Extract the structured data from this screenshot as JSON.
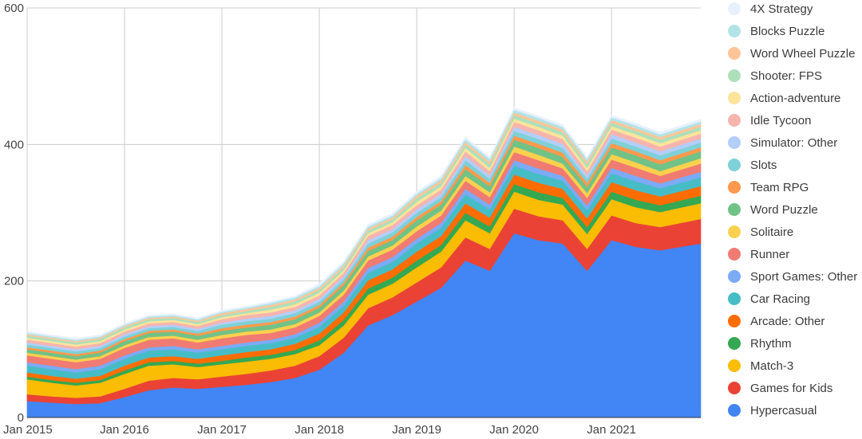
{
  "chart_data": {
    "type": "area",
    "stacked": true,
    "title": "",
    "xlabel": "",
    "ylabel": "",
    "ylim": [
      0,
      600
    ],
    "yticks": [
      "0",
      "200",
      "400",
      "600"
    ],
    "xticks": [
      "Jan 2015",
      "Jan 2016",
      "Jan 2017",
      "Jan 2018",
      "Jan 2019",
      "Jan 2020",
      "Jan 2021"
    ],
    "x_start": "2015-01",
    "x": [
      "2015-01",
      "2015-04",
      "2015-07",
      "2015-10",
      "2016-01",
      "2016-04",
      "2016-07",
      "2016-10",
      "2017-01",
      "2017-04",
      "2017-07",
      "2017-10",
      "2018-01",
      "2018-04",
      "2018-07",
      "2018-10",
      "2019-01",
      "2019-04",
      "2019-07",
      "2019-10",
      "2020-01",
      "2020-04",
      "2020-07",
      "2020-10",
      "2021-01",
      "2021-04",
      "2021-07",
      "2021-10"
    ],
    "grid": true,
    "legend_position": "right",
    "series": [
      {
        "name": "Hypercasual",
        "color": "#4285f4",
        "values": [
          24,
          22,
          20,
          21,
          30,
          40,
          44,
          42,
          45,
          48,
          52,
          58,
          70,
          95,
          135,
          150,
          170,
          190,
          230,
          215,
          270,
          260,
          255,
          215,
          260,
          250,
          245,
          255
        ]
      },
      {
        "name": "Games for Kids",
        "color": "#ea4335",
        "values": [
          10,
          9,
          9,
          10,
          12,
          14,
          14,
          14,
          15,
          16,
          17,
          18,
          20,
          22,
          25,
          26,
          28,
          30,
          34,
          32,
          36,
          35,
          34,
          32,
          36,
          35,
          34,
          36
        ]
      },
      {
        "name": "Match-3",
        "color": "#fbbc04",
        "values": [
          22,
          20,
          18,
          20,
          22,
          22,
          20,
          18,
          18,
          18,
          17,
          17,
          16,
          18,
          20,
          20,
          22,
          23,
          25,
          23,
          25,
          24,
          23,
          22,
          24,
          23,
          22,
          23
        ]
      },
      {
        "name": "Rhythm",
        "color": "#34a853",
        "values": [
          4,
          4,
          4,
          4,
          5,
          5,
          5,
          5,
          5,
          6,
          6,
          6,
          7,
          8,
          9,
          9,
          10,
          10,
          11,
          10,
          11,
          11,
          10,
          10,
          11,
          11,
          10,
          11
        ]
      },
      {
        "name": "Arcade: Other",
        "color": "#ff6d01",
        "values": [
          6,
          6,
          6,
          6,
          7,
          7,
          7,
          7,
          8,
          8,
          8,
          9,
          10,
          11,
          12,
          12,
          13,
          13,
          14,
          13,
          14,
          14,
          13,
          13,
          14,
          14,
          13,
          14
        ]
      },
      {
        "name": "Car Racing",
        "color": "#46bdc6",
        "values": [
          10,
          10,
          9,
          10,
          10,
          10,
          10,
          9,
          9,
          9,
          9,
          9,
          10,
          10,
          11,
          11,
          12,
          12,
          13,
          12,
          13,
          13,
          12,
          12,
          13,
          13,
          12,
          13
        ]
      },
      {
        "name": "Sport Games: Other",
        "color": "#7baaf7",
        "values": [
          5,
          5,
          5,
          5,
          5,
          5,
          5,
          5,
          5,
          5,
          5,
          5,
          6,
          6,
          7,
          7,
          7,
          7,
          8,
          7,
          8,
          8,
          7,
          7,
          8,
          8,
          7,
          8
        ]
      },
      {
        "name": "Runner",
        "color": "#f07b72",
        "values": [
          10,
          10,
          10,
          10,
          11,
          11,
          11,
          10,
          11,
          11,
          10,
          10,
          10,
          10,
          11,
          11,
          11,
          11,
          12,
          11,
          12,
          12,
          11,
          11,
          12,
          12,
          11,
          12
        ]
      },
      {
        "name": "Solitaire",
        "color": "#fcd04f",
        "values": [
          4,
          4,
          4,
          4,
          4,
          4,
          4,
          4,
          5,
          5,
          5,
          5,
          5,
          6,
          6,
          6,
          7,
          7,
          7,
          7,
          8,
          8,
          7,
          7,
          8,
          8,
          7,
          8
        ]
      },
      {
        "name": "Word Puzzle",
        "color": "#71c287",
        "values": [
          5,
          5,
          5,
          5,
          6,
          6,
          6,
          6,
          6,
          6,
          7,
          7,
          7,
          8,
          8,
          8,
          9,
          9,
          10,
          9,
          10,
          10,
          10,
          9,
          10,
          10,
          10,
          10
        ]
      },
      {
        "name": "Team RPG",
        "color": "#ff994d",
        "values": [
          3,
          3,
          3,
          3,
          3,
          3,
          3,
          3,
          4,
          4,
          4,
          4,
          4,
          4,
          5,
          5,
          5,
          5,
          6,
          5,
          6,
          6,
          6,
          6,
          6,
          6,
          6,
          6
        ]
      },
      {
        "name": "Slots",
        "color": "#7ed1d7",
        "values": [
          4,
          4,
          4,
          4,
          4,
          4,
          4,
          4,
          5,
          5,
          5,
          5,
          5,
          5,
          6,
          6,
          6,
          6,
          7,
          6,
          7,
          7,
          7,
          6,
          7,
          7,
          7,
          7
        ]
      },
      {
        "name": "Simulator: Other",
        "color": "#b3cefb",
        "values": [
          3,
          3,
          3,
          3,
          3,
          3,
          3,
          3,
          3,
          4,
          4,
          4,
          4,
          4,
          5,
          5,
          5,
          5,
          6,
          5,
          6,
          6,
          6,
          5,
          6,
          6,
          6,
          6
        ]
      },
      {
        "name": "Idle Tycoon",
        "color": "#f7b4ae",
        "values": [
          4,
          4,
          4,
          4,
          4,
          4,
          4,
          4,
          5,
          5,
          5,
          5,
          5,
          5,
          6,
          6,
          6,
          6,
          7,
          6,
          7,
          7,
          7,
          6,
          7,
          7,
          7,
          7
        ]
      },
      {
        "name": "Action-adventure",
        "color": "#fde49b",
        "values": [
          3,
          3,
          3,
          3,
          3,
          3,
          3,
          3,
          3,
          3,
          4,
          4,
          4,
          4,
          4,
          4,
          5,
          5,
          5,
          5,
          5,
          5,
          5,
          5,
          5,
          5,
          5,
          5
        ]
      },
      {
        "name": "Shooter: FPS",
        "color": "#ace0bb",
        "values": [
          3,
          3,
          3,
          3,
          3,
          3,
          3,
          3,
          3,
          3,
          4,
          4,
          4,
          4,
          4,
          4,
          5,
          5,
          5,
          5,
          5,
          5,
          5,
          5,
          5,
          5,
          5,
          5
        ]
      },
      {
        "name": "Word Wheel Puzzle",
        "color": "#ffc599",
        "values": [
          2,
          2,
          2,
          2,
          2,
          2,
          2,
          2,
          3,
          3,
          3,
          3,
          3,
          3,
          3,
          3,
          4,
          4,
          4,
          4,
          4,
          4,
          4,
          4,
          4,
          4,
          4,
          4
        ]
      },
      {
        "name": "Blocks Puzzle",
        "color": "#b2e4e7",
        "values": [
          2,
          2,
          2,
          2,
          2,
          2,
          2,
          2,
          2,
          2,
          3,
          3,
          3,
          3,
          3,
          3,
          3,
          3,
          4,
          4,
          4,
          4,
          4,
          4,
          4,
          4,
          4,
          4
        ]
      },
      {
        "name": "4X Strategy",
        "color": "#e8f0fe",
        "values": [
          2,
          2,
          2,
          2,
          2,
          2,
          2,
          2,
          2,
          2,
          2,
          2,
          3,
          3,
          3,
          3,
          3,
          3,
          3,
          3,
          3,
          3,
          3,
          3,
          3,
          3,
          3,
          3
        ]
      }
    ]
  }
}
